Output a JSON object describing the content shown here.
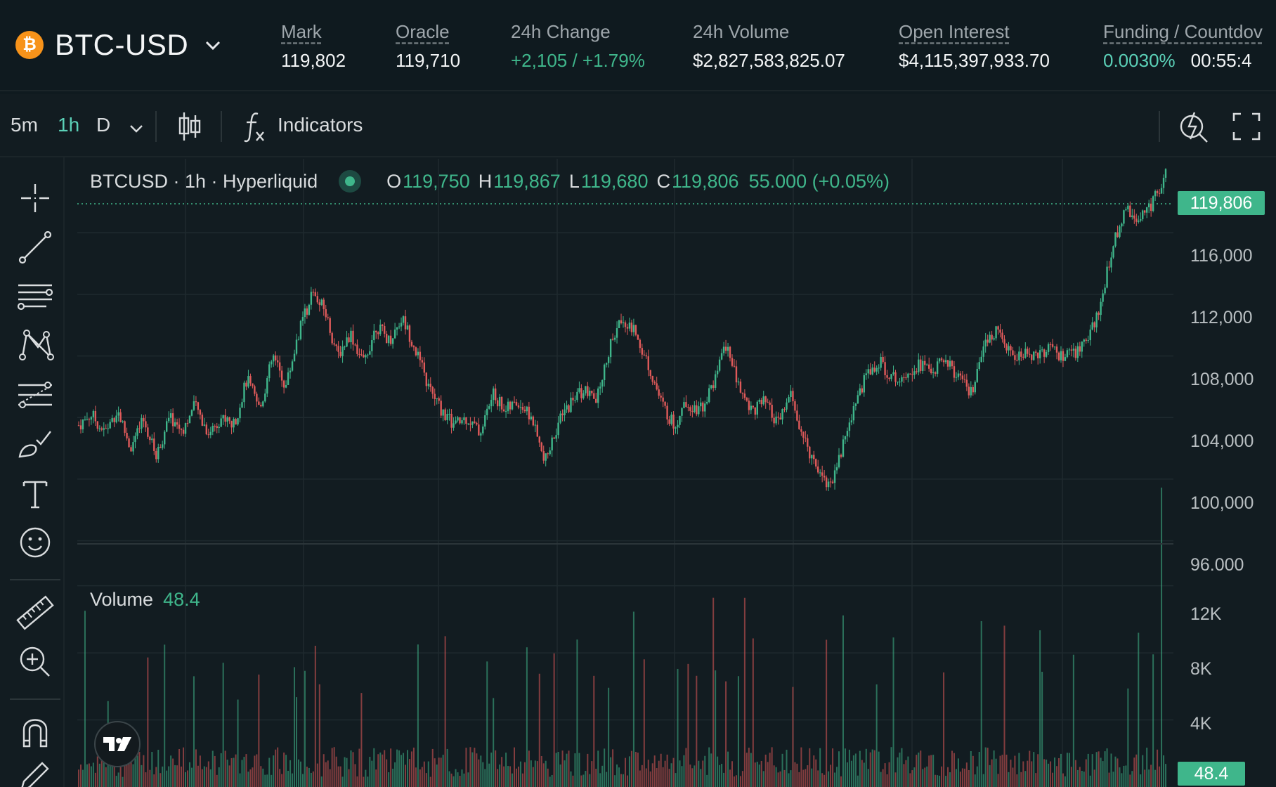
{
  "market": {
    "symbol": "BTC-USD",
    "coin_icon": "bitcoin-icon",
    "coin_glyph": "₿",
    "mark_label": "Mark",
    "mark_value": "119,802",
    "oracle_label": "Oracle",
    "oracle_value": "119,710",
    "change_label": "24h Change",
    "change_value": "+2,105 / +1.79%",
    "volume_label": "24h Volume",
    "volume_value": "$2,827,583,825.07",
    "oi_label": "Open Interest",
    "oi_value": "$4,115,397,933.70",
    "funding_label": "Funding / Countdov",
    "funding_value": "0.0030%",
    "countdown_value": "00:55:4"
  },
  "toolbar": {
    "intervals": [
      "5m",
      "1h",
      "D"
    ],
    "active_interval": "1h",
    "indicators_label": "Indicators"
  },
  "legend": {
    "title": "BTCUSD · 1h · Hyperliquid",
    "o_key": "O",
    "o_val": "119,750",
    "h_key": "H",
    "h_val": "119,867",
    "l_key": "L",
    "l_val": "119,680",
    "c_key": "C",
    "c_val": "119,806",
    "change": "55.000 (+0.05%)"
  },
  "volume_legend": {
    "label": "Volume",
    "value": "48.4"
  },
  "colors": {
    "up": "#3fb68b",
    "down": "#e05a5a",
    "bg": "#121c21",
    "grid": "#1f2a2f",
    "accent": "#5bd0b7"
  },
  "chart_data": {
    "type": "candlestick",
    "title": "BTCUSD · 1h · Hyperliquid",
    "interval": "1h",
    "price_ticks": [
      "116,000",
      "112,000",
      "108,000",
      "104,000",
      "100,000",
      "96,000"
    ],
    "price_tick_values": [
      116000,
      112000,
      108000,
      104000,
      100000,
      96000
    ],
    "ylim": [
      95800,
      120800
    ],
    "last_price": "119,806",
    "last_price_value": 119806,
    "close_path": [
      103500,
      104200,
      103000,
      104500,
      102000,
      103800,
      101500,
      104000,
      103200,
      104800,
      103000,
      104000,
      103500,
      106500,
      104500,
      108000,
      106000,
      109500,
      112000,
      111000,
      108000,
      109500,
      107500,
      110000,
      109000,
      110500,
      108500,
      106000,
      104500,
      103500,
      104000,
      103000,
      105500,
      104500,
      105000,
      104000,
      101000,
      103500,
      105000,
      105800,
      105000,
      108500,
      110500,
      109500,
      107500,
      105000,
      103500,
      105000,
      104500,
      106000,
      108800,
      106000,
      104500,
      105000,
      103500,
      105500,
      102500,
      101000,
      99500,
      102000,
      105000,
      107000,
      107500,
      106500,
      107000,
      107500,
      107000,
      107800,
      106500,
      105500,
      108500,
      110000,
      108000,
      108000,
      108200,
      108500,
      107800,
      108200,
      109000,
      111500,
      115500,
      117500,
      117000,
      118000,
      119806
    ],
    "volume_ticks": [
      "12K",
      "8K",
      "4K"
    ],
    "volume_tick_values": [
      12000,
      8000,
      4000
    ],
    "volume_ylim": [
      0,
      14500
    ],
    "last_volume": "48.4",
    "last_volume_value": 48.4
  }
}
